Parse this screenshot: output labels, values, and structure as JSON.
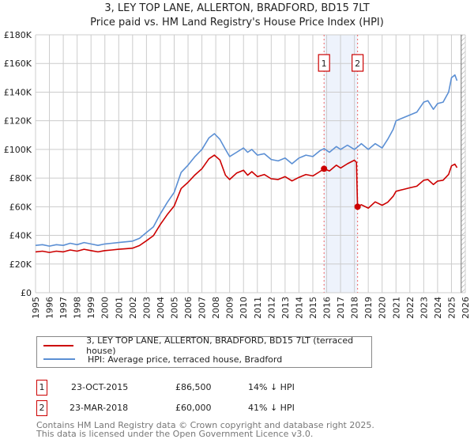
{
  "chart_data": {
    "type": "line",
    "title": "3, LEY TOP LANE, ALLERTON, BRADFORD, BD15 7LT",
    "subtitle": "Price paid vs. HM Land Registry's House Price Index (HPI)",
    "xlim": [
      1995,
      2026
    ],
    "ylim": [
      0,
      180000
    ],
    "x_ticks": [
      "1995",
      "1996",
      "1997",
      "1998",
      "1999",
      "2000",
      "2001",
      "2002",
      "2003",
      "2004",
      "2005",
      "2006",
      "2007",
      "2008",
      "2009",
      "2010",
      "2011",
      "2012",
      "2013",
      "2014",
      "2015",
      "2016",
      "2017",
      "2018",
      "2019",
      "2020",
      "2021",
      "2022",
      "2023",
      "2024",
      "2025",
      "2026"
    ],
    "y_ticks": [
      {
        "v": 0,
        "label": "£0"
      },
      {
        "v": 20000,
        "label": "£20K"
      },
      {
        "v": 40000,
        "label": "£40K"
      },
      {
        "v": 60000,
        "label": "£60K"
      },
      {
        "v": 80000,
        "label": "£80K"
      },
      {
        "v": 100000,
        "label": "£100K"
      },
      {
        "v": 120000,
        "label": "£120K"
      },
      {
        "v": 140000,
        "label": "£140K"
      },
      {
        "v": 160000,
        "label": "£160K"
      },
      {
        "v": 180000,
        "label": "£180K"
      }
    ],
    "grid": true,
    "shaded_period": [
      2015.81,
      2018.23
    ],
    "forecast_hatch_from": 2025.7,
    "series": [
      {
        "name": "3, LEY TOP LANE, ALLERTON, BRADFORD, BD15 7LT (terraced house)",
        "color": "#cc0000",
        "x": [
          1995,
          1995.5,
          1996,
          1996.5,
          1997,
          1997.5,
          1998,
          1998.5,
          1999,
          1999.5,
          2000,
          2000.5,
          2001,
          2001.5,
          2002,
          2002.5,
          2003,
          2003.5,
          2004,
          2004.5,
          2005,
          2005.5,
          2006,
          2006.5,
          2007,
          2007.5,
          2007.9,
          2008.3,
          2008.7,
          2009,
          2009.5,
          2010,
          2010.3,
          2010.6,
          2011,
          2011.5,
          2012,
          2012.5,
          2013,
          2013.5,
          2014,
          2014.5,
          2015,
          2015.5,
          2015.81,
          2016.2,
          2016.7,
          2017,
          2017.5,
          2018,
          2018.15,
          2018.23,
          2018.5,
          2019,
          2019.5,
          2020,
          2020.4,
          2020.8,
          2021,
          2021.5,
          2022,
          2022.5,
          2023,
          2023.3,
          2023.7,
          2024,
          2024.4,
          2024.8,
          2025,
          2025.25,
          2025.4
        ],
        "y": [
          28500,
          29000,
          28100,
          29000,
          28500,
          29800,
          29000,
          30300,
          29400,
          28500,
          29400,
          29800,
          30300,
          30700,
          31100,
          32900,
          36300,
          39800,
          47600,
          54500,
          60500,
          72700,
          77000,
          82200,
          86500,
          93400,
          96000,
          92600,
          82000,
          79000,
          83500,
          85500,
          82000,
          84500,
          81000,
          82500,
          79500,
          79000,
          81000,
          78000,
          80500,
          82500,
          81500,
          84500,
          86500,
          85000,
          89000,
          87000,
          90000,
          92500,
          91000,
          60000,
          61400,
          59000,
          63400,
          61000,
          63100,
          67300,
          70800,
          72000,
          73200,
          74300,
          78500,
          79000,
          75500,
          77900,
          78500,
          82600,
          88500,
          89700,
          87300
        ]
      },
      {
        "name": "HPI: Average price, terraced house, Bradford",
        "color": "#5b8fd4",
        "x": [
          1995,
          1995.5,
          1996,
          1996.5,
          1997,
          1997.5,
          1998,
          1998.5,
          1999,
          1999.5,
          2000,
          2000.5,
          2001,
          2001.5,
          2002,
          2002.5,
          2003,
          2003.5,
          2004,
          2004.5,
          2005,
          2005.5,
          2006,
          2006.5,
          2007,
          2007.5,
          2007.9,
          2008.3,
          2008.7,
          2009,
          2009.5,
          2010,
          2010.3,
          2010.6,
          2011,
          2011.5,
          2012,
          2012.5,
          2013,
          2013.5,
          2014,
          2014.5,
          2015,
          2015.5,
          2015.81,
          2016.2,
          2016.7,
          2017,
          2017.5,
          2018,
          2018.23,
          2018.5,
          2019,
          2019.5,
          2020,
          2020.4,
          2020.8,
          2021,
          2021.5,
          2022,
          2022.5,
          2023,
          2023.3,
          2023.7,
          2024,
          2024.4,
          2024.8,
          2025,
          2025.25,
          2025.4
        ],
        "y": [
          33000,
          33500,
          32500,
          33500,
          33000,
          34500,
          33500,
          35000,
          34000,
          33000,
          34000,
          34500,
          35000,
          35500,
          36000,
          38000,
          42000,
          46000,
          55000,
          63000,
          70000,
          84000,
          89000,
          95000,
          100000,
          108000,
          111000,
          107000,
          100000,
          95000,
          98000,
          101000,
          98000,
          100000,
          96000,
          97000,
          93000,
          92000,
          94000,
          90000,
          94000,
          96000,
          95000,
          99000,
          100600,
          98000,
          102000,
          100000,
          103000,
          100000,
          101700,
          104000,
          100000,
          104000,
          101000,
          107000,
          114000,
          120000,
          122000,
          124000,
          126000,
          133000,
          134000,
          128000,
          132000,
          133000,
          140000,
          150000,
          152000,
          148000
        ]
      }
    ],
    "markers": [
      {
        "label": "1",
        "x": 2015.81,
        "y": 86500
      },
      {
        "label": "2",
        "x": 2018.23,
        "y": 60000
      }
    ]
  },
  "legend": {
    "items": [
      {
        "label": "3, LEY TOP LANE, ALLERTON, BRADFORD, BD15 7LT (terraced house)",
        "color": "#cc0000"
      },
      {
        "label": "HPI: Average price, terraced house, Bradford",
        "color": "#5b8fd4"
      }
    ]
  },
  "transactions": [
    {
      "num": "1",
      "date": "23-OCT-2015",
      "price": "£86,500",
      "hpi": "14% ↓ HPI"
    },
    {
      "num": "2",
      "date": "23-MAR-2018",
      "price": "£60,000",
      "hpi": "41% ↓ HPI"
    }
  ],
  "footer": {
    "line1": "Contains HM Land Registry data © Crown copyright and database right 2025.",
    "line2": "This data is licensed under the Open Government Licence v3.0."
  }
}
